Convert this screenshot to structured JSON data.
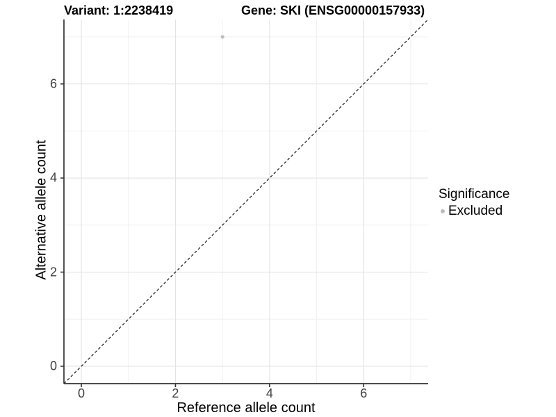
{
  "titles": {
    "variant": "Variant: 1:2238419",
    "gene": "Gene: SKI (ENSG00000157933)"
  },
  "chart_data": {
    "type": "scatter",
    "title_left": "Variant: 1:2238419",
    "title_right": "Gene: SKI (ENSG00000157933)",
    "xlabel": "Reference allele count",
    "ylabel": "Alternative allele count",
    "xlim": [
      -0.37,
      7.37
    ],
    "ylim": [
      -0.37,
      7.37
    ],
    "x_ticks": [
      0,
      2,
      4,
      6
    ],
    "y_ticks": [
      0,
      2,
      4,
      6
    ],
    "x_minor": [
      1,
      3,
      5,
      7
    ],
    "y_minor": [
      1,
      3,
      5,
      7
    ],
    "grid": true,
    "points": [
      {
        "x": 3,
        "y": 7,
        "series": "Excluded"
      }
    ],
    "reference_line": {
      "slope": 1,
      "intercept": 0,
      "style": "dashed"
    },
    "legend": {
      "title": "Significance",
      "position": "right",
      "items": [
        {
          "label": "Excluded",
          "color": "#bdbdbd"
        }
      ]
    }
  },
  "colors": {
    "background": "#ffffff",
    "grid_major": "#e3e3e3",
    "grid_minor": "#f0f0f0",
    "axis_line": "#333333",
    "tick_mark": "#333333",
    "tick_label": "#404040",
    "reference_line": "#000000",
    "point": "#bdbdbd"
  }
}
